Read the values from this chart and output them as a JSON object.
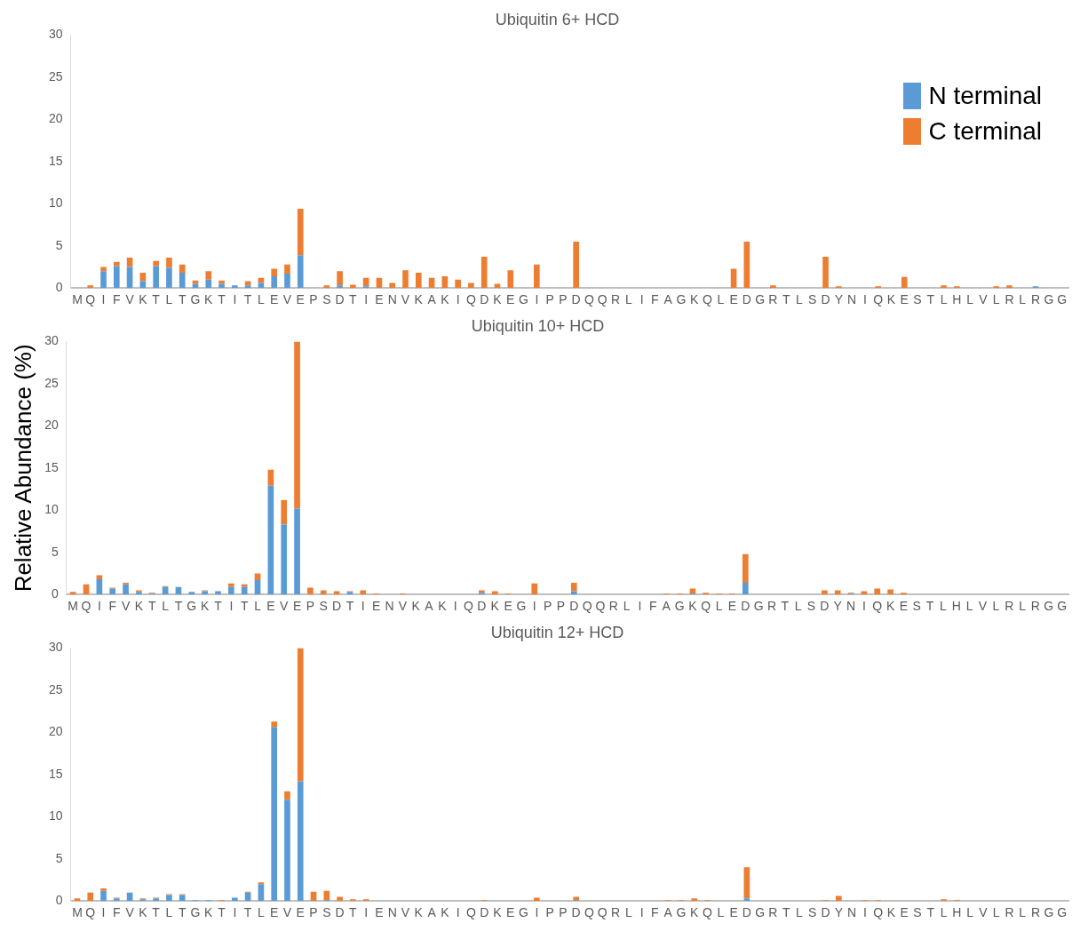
{
  "chart_data": [
    {
      "type": "bar",
      "title": "Ubiquitin 6+ HCD",
      "stacked": true,
      "legend": "top right",
      "grid": false,
      "ylim": [
        0,
        30
      ],
      "yticks": [
        0,
        5,
        10,
        15,
        20,
        25,
        30
      ],
      "categories": [
        "M",
        "Q",
        "I",
        "F",
        "V",
        "K",
        "T",
        "L",
        "T",
        "G",
        "K",
        "T",
        "I",
        "T",
        "L",
        "E",
        "V",
        "E",
        "P",
        "S",
        "D",
        "T",
        "I",
        "E",
        "N",
        "V",
        "K",
        "A",
        "K",
        "I",
        "Q",
        "D",
        "K",
        "E",
        "G",
        "I",
        "P",
        "P",
        "D",
        "Q",
        "Q",
        "R",
        "L",
        "I",
        "F",
        "A",
        "G",
        "K",
        "Q",
        "L",
        "E",
        "D",
        "G",
        "R",
        "T",
        "L",
        "S",
        "D",
        "Y",
        "N",
        "I",
        "Q",
        "K",
        "E",
        "S",
        "T",
        "L",
        "H",
        "L",
        "V",
        "L",
        "R",
        "L",
        "R",
        "G",
        "G"
      ],
      "series": [
        {
          "name": "N terminal",
          "color": "#5b9bd5",
          "values": [
            0,
            0,
            2.0,
            2.6,
            2.5,
            0.8,
            2.6,
            2.4,
            1.8,
            0.5,
            1.0,
            0.5,
            0.3,
            0.3,
            0.6,
            1.4,
            1.7,
            3.9,
            0,
            0,
            0.3,
            0,
            0.2,
            0,
            0,
            0,
            0,
            0,
            0,
            0,
            0,
            0,
            0,
            0,
            0,
            0,
            0,
            0,
            0,
            0,
            0,
            0,
            0,
            0,
            0,
            0,
            0,
            0,
            0,
            0,
            0,
            0,
            0,
            0,
            0,
            0,
            0,
            0,
            0,
            0,
            0,
            0,
            0,
            0,
            0,
            0,
            0,
            0,
            0,
            0,
            0,
            0,
            0,
            0.2,
            0,
            0
          ]
        },
        {
          "name": "C terminal",
          "color": "#ed7d31",
          "values": [
            0,
            0.3,
            0.5,
            0.5,
            1.1,
            1.0,
            0.6,
            1.2,
            1.0,
            0.4,
            1.0,
            0.4,
            0,
            0.5,
            0.6,
            0.9,
            1.1,
            5.5,
            0,
            0.3,
            1.7,
            0.4,
            1.0,
            1.2,
            0.6,
            2.1,
            1.8,
            1.2,
            1.4,
            1.0,
            0.6,
            3.7,
            0.5,
            2.1,
            0,
            2.8,
            0,
            0,
            5.5,
            0,
            0,
            0,
            0,
            0,
            0,
            0,
            0,
            0,
            0,
            0,
            2.3,
            5.5,
            0,
            0.3,
            0,
            0,
            0,
            3.7,
            0.2,
            0,
            0,
            0.2,
            0,
            1.3,
            0,
            0,
            0.3,
            0.2,
            0,
            0,
            0.2,
            0.3,
            0,
            0,
            0,
            0
          ]
        }
      ]
    },
    {
      "type": "bar",
      "title": "Ubiquitin 10+ HCD",
      "ylabel": "Relative Abundance (%)",
      "stacked": true,
      "grid": false,
      "ylim": [
        0,
        30
      ],
      "yticks": [
        0,
        5,
        10,
        15,
        20,
        25,
        30
      ],
      "categories": [
        "M",
        "Q",
        "I",
        "F",
        "V",
        "K",
        "T",
        "L",
        "T",
        "G",
        "K",
        "T",
        "I",
        "T",
        "L",
        "E",
        "V",
        "E",
        "P",
        "S",
        "D",
        "T",
        "I",
        "E",
        "N",
        "V",
        "K",
        "A",
        "K",
        "I",
        "Q",
        "D",
        "K",
        "E",
        "G",
        "I",
        "P",
        "P",
        "D",
        "Q",
        "Q",
        "R",
        "L",
        "I",
        "F",
        "A",
        "G",
        "K",
        "Q",
        "L",
        "E",
        "D",
        "G",
        "R",
        "T",
        "L",
        "S",
        "D",
        "Y",
        "N",
        "I",
        "Q",
        "K",
        "E",
        "S",
        "T",
        "L",
        "H",
        "L",
        "V",
        "L",
        "R",
        "L",
        "R",
        "G",
        "G"
      ],
      "series": [
        {
          "color": "#5b9bd5",
          "values": [
            0,
            0,
            1.8,
            0.7,
            1.2,
            0.3,
            0.1,
            0.9,
            0.9,
            0.3,
            0.4,
            0.4,
            0.9,
            0.9,
            1.7,
            12.9,
            8.3,
            10.2,
            0,
            0,
            0,
            0.3,
            0,
            0,
            0,
            0,
            0,
            0,
            0,
            0,
            0,
            0.2,
            0,
            0,
            0,
            0,
            0,
            0,
            0.4,
            0,
            0,
            0,
            0,
            0,
            0,
            0,
            0,
            0.1,
            0,
            0,
            0,
            1.4,
            0,
            0,
            0,
            0,
            0,
            0,
            0,
            0.1,
            0,
            0,
            0,
            0,
            0,
            0,
            0,
            0,
            0,
            0,
            0,
            0,
            0,
            0,
            0,
            0
          ]
        },
        {
          "color": "#ed7d31",
          "values": [
            0.3,
            1.2,
            0.5,
            0.1,
            0.2,
            0.2,
            0.1,
            0.1,
            0,
            0,
            0.1,
            0,
            0.4,
            0.3,
            0.8,
            1.9,
            2.9,
            19.8,
            0.8,
            0.5,
            0.4,
            0.1,
            0.5,
            0.1,
            0,
            0.1,
            0,
            0,
            0,
            0,
            0,
            0.3,
            0.4,
            0.1,
            0,
            1.3,
            0,
            0,
            1.0,
            0,
            0,
            0,
            0,
            0,
            0,
            0.1,
            0.1,
            0.6,
            0.2,
            0.1,
            0.1,
            3.4,
            0,
            0,
            0,
            0,
            0,
            0.5,
            0.5,
            0.1,
            0.4,
            0.7,
            0.6,
            0.2,
            0,
            0,
            0,
            0,
            0,
            0,
            0,
            0,
            0,
            0,
            0,
            0
          ]
        }
      ]
    },
    {
      "type": "bar",
      "title": "Ubiquitin 12+ HCD",
      "stacked": true,
      "grid": false,
      "ylim": [
        0,
        30
      ],
      "yticks": [
        0,
        5,
        10,
        15,
        20,
        25,
        30
      ],
      "categories": [
        "M",
        "Q",
        "I",
        "F",
        "V",
        "K",
        "T",
        "L",
        "T",
        "G",
        "K",
        "T",
        "I",
        "T",
        "L",
        "E",
        "V",
        "E",
        "P",
        "S",
        "D",
        "T",
        "I",
        "E",
        "N",
        "V",
        "K",
        "A",
        "K",
        "I",
        "Q",
        "D",
        "K",
        "E",
        "G",
        "I",
        "P",
        "P",
        "D",
        "Q",
        "Q",
        "R",
        "L",
        "I",
        "F",
        "A",
        "G",
        "K",
        "Q",
        "L",
        "E",
        "D",
        "G",
        "R",
        "T",
        "L",
        "S",
        "D",
        "Y",
        "N",
        "I",
        "Q",
        "K",
        "E",
        "S",
        "T",
        "L",
        "H",
        "L",
        "V",
        "L",
        "R",
        "L",
        "R",
        "G",
        "G"
      ],
      "series": [
        {
          "color": "#5b9bd5",
          "values": [
            0,
            0,
            1.2,
            0.3,
            1.0,
            0.2,
            0.3,
            0.7,
            0.7,
            0.1,
            0.1,
            0,
            0.4,
            1.0,
            2.0,
            20.6,
            12.0,
            14.2,
            0,
            0.1,
            0,
            0,
            0,
            0,
            0,
            0,
            0,
            0,
            0,
            0,
            0,
            0,
            0,
            0,
            0,
            0,
            0,
            0,
            0.1,
            0,
            0,
            0,
            0,
            0,
            0,
            0,
            0,
            0,
            0,
            0,
            0,
            0.3,
            0,
            0,
            0,
            0,
            0,
            0,
            0,
            0,
            0,
            0,
            0,
            0,
            0,
            0,
            0,
            0,
            0,
            0,
            0,
            0,
            0,
            0,
            0,
            0
          ]
        },
        {
          "color": "#ed7d31",
          "values": [
            0.3,
            1.0,
            0.3,
            0.1,
            0,
            0.1,
            0.1,
            0.1,
            0.1,
            0,
            0,
            0.1,
            0,
            0.1,
            0.2,
            0.7,
            1.0,
            15.8,
            1.1,
            1.1,
            0.5,
            0.2,
            0.2,
            0,
            0,
            0,
            0,
            0,
            0,
            0,
            0,
            0.1,
            0,
            0,
            0,
            0.4,
            0,
            0,
            0.4,
            0,
            0,
            0,
            0,
            0,
            0,
            0.1,
            0.1,
            0.3,
            0.1,
            0,
            0,
            3.7,
            0,
            0,
            0,
            0,
            0,
            0.1,
            0.6,
            0,
            0.1,
            0.1,
            0,
            0,
            0,
            0,
            0.2,
            0.1,
            0,
            0,
            0,
            0,
            0,
            0,
            0,
            0
          ]
        }
      ]
    }
  ]
}
